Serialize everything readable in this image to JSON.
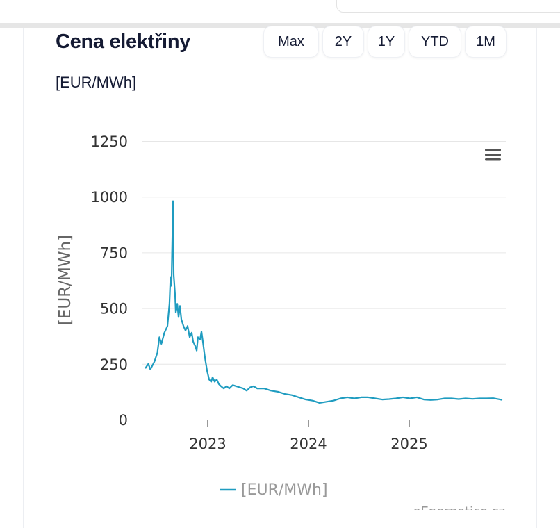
{
  "header": {
    "title": "Cena elektřiny",
    "unit": "[EUR/MWh]"
  },
  "range_buttons": [
    {
      "label": "Max"
    },
    {
      "label": "2Y"
    },
    {
      "label": "1Y"
    },
    {
      "label": "YTD"
    },
    {
      "label": "1M"
    }
  ],
  "menu_icon": "hamburger-menu-icon",
  "credits": "eEnergetice.cz",
  "colors": {
    "series": "#1f9cc0",
    "title": "#141a33",
    "grid": "#e6e6e6"
  },
  "chart_data": {
    "type": "line",
    "title": "",
    "xlabel": "",
    "ylabel": "[EUR/MWh]",
    "ylim": [
      0,
      1250
    ],
    "xlim": [
      2022.38,
      2025.93
    ],
    "yticks": [
      "0",
      "250",
      "500",
      "750",
      "1000",
      "1250"
    ],
    "xticks": [
      "2023",
      "2024",
      "2025"
    ],
    "grid": true,
    "legend_position": "bottom",
    "series": [
      {
        "name": "[EUR/MWh]",
        "points": [
          [
            2022.38,
            230
          ],
          [
            2022.41,
            250
          ],
          [
            2022.43,
            225
          ],
          [
            2022.47,
            260
          ],
          [
            2022.5,
            300
          ],
          [
            2022.52,
            370
          ],
          [
            2022.54,
            340
          ],
          [
            2022.57,
            390
          ],
          [
            2022.6,
            420
          ],
          [
            2022.62,
            520
          ],
          [
            2022.63,
            640
          ],
          [
            2022.64,
            600
          ],
          [
            2022.655,
            980
          ],
          [
            2022.662,
            650
          ],
          [
            2022.676,
            560
          ],
          [
            2022.683,
            480
          ],
          [
            2022.697,
            520
          ],
          [
            2022.71,
            460
          ],
          [
            2022.724,
            510
          ],
          [
            2022.738,
            450
          ],
          [
            2022.759,
            420
          ],
          [
            2022.779,
            400
          ],
          [
            2022.8,
            420
          ],
          [
            2022.821,
            370
          ],
          [
            2022.841,
            390
          ],
          [
            2022.855,
            350
          ],
          [
            2022.876,
            330
          ],
          [
            2022.89,
            310
          ],
          [
            2022.903,
            370
          ],
          [
            2022.924,
            360
          ],
          [
            2022.938,
            395
          ],
          [
            2022.952,
            350
          ],
          [
            2022.972,
            280
          ],
          [
            2022.993,
            220
          ],
          [
            2023.014,
            180
          ],
          [
            2023.034,
            170
          ],
          [
            2023.048,
            190
          ],
          [
            2023.069,
            170
          ],
          [
            2023.09,
            180
          ],
          [
            2023.11,
            160
          ],
          [
            2023.131,
            150
          ],
          [
            2023.159,
            140
          ],
          [
            2023.186,
            150
          ],
          [
            2023.214,
            140
          ],
          [
            2023.248,
            155
          ],
          [
            2023.283,
            150
          ],
          [
            2023.317,
            145
          ],
          [
            2023.352,
            140
          ],
          [
            2023.386,
            130
          ],
          [
            2023.421,
            145
          ],
          [
            2023.455,
            150
          ],
          [
            2023.49,
            140
          ],
          [
            2023.559,
            140
          ],
          [
            2023.628,
            130
          ],
          [
            2023.697,
            125
          ],
          [
            2023.766,
            115
          ],
          [
            2023.834,
            110
          ],
          [
            2023.903,
            100
          ],
          [
            2023.972,
            90
          ],
          [
            2024.041,
            85
          ],
          [
            2024.11,
            75
          ],
          [
            2024.179,
            80
          ],
          [
            2024.248,
            85
          ],
          [
            2024.317,
            95
          ],
          [
            2024.386,
            100
          ],
          [
            2024.455,
            95
          ],
          [
            2024.524,
            100
          ],
          [
            2024.593,
            100
          ],
          [
            2024.662,
            95
          ],
          [
            2024.731,
            90
          ],
          [
            2024.8,
            92
          ],
          [
            2024.869,
            95
          ],
          [
            2024.938,
            100
          ],
          [
            2025.007,
            95
          ],
          [
            2025.076,
            100
          ],
          [
            2025.145,
            90
          ],
          [
            2025.214,
            88
          ],
          [
            2025.283,
            90
          ],
          [
            2025.352,
            95
          ],
          [
            2025.421,
            95
          ],
          [
            2025.49,
            92
          ],
          [
            2025.559,
            95
          ],
          [
            2025.628,
            93
          ],
          [
            2025.697,
            95
          ],
          [
            2025.766,
            95
          ],
          [
            2025.834,
            96
          ],
          [
            2025.903,
            90
          ],
          [
            2025.924,
            88
          ]
        ]
      }
    ]
  }
}
